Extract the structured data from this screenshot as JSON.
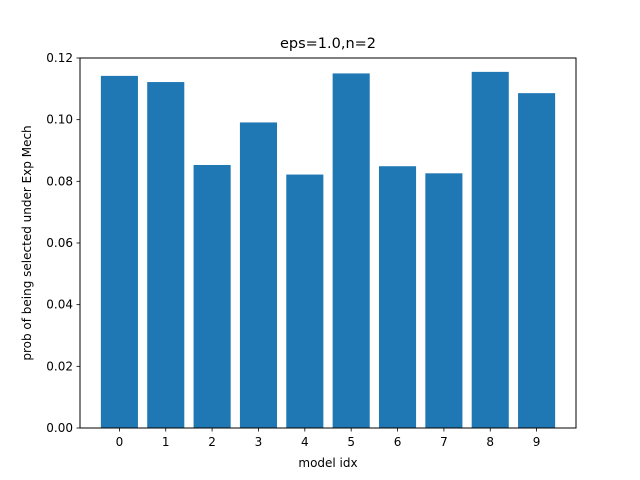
{
  "chart_data": {
    "type": "bar",
    "title": "eps=1.0,n=2",
    "xlabel": "model idx",
    "ylabel": "prob of being selected under Exp Mech",
    "categories": [
      "0",
      "1",
      "2",
      "3",
      "4",
      "5",
      "6",
      "7",
      "8",
      "9"
    ],
    "values": [
      0.1142,
      0.1122,
      0.0853,
      0.0991,
      0.0822,
      0.115,
      0.0849,
      0.0826,
      0.1155,
      0.1086
    ],
    "ylim": [
      0,
      0.12
    ],
    "yticks": [
      "0.00",
      "0.02",
      "0.04",
      "0.06",
      "0.08",
      "0.10",
      "0.12"
    ],
    "grid": false,
    "bar_color": "#1f77b4"
  }
}
